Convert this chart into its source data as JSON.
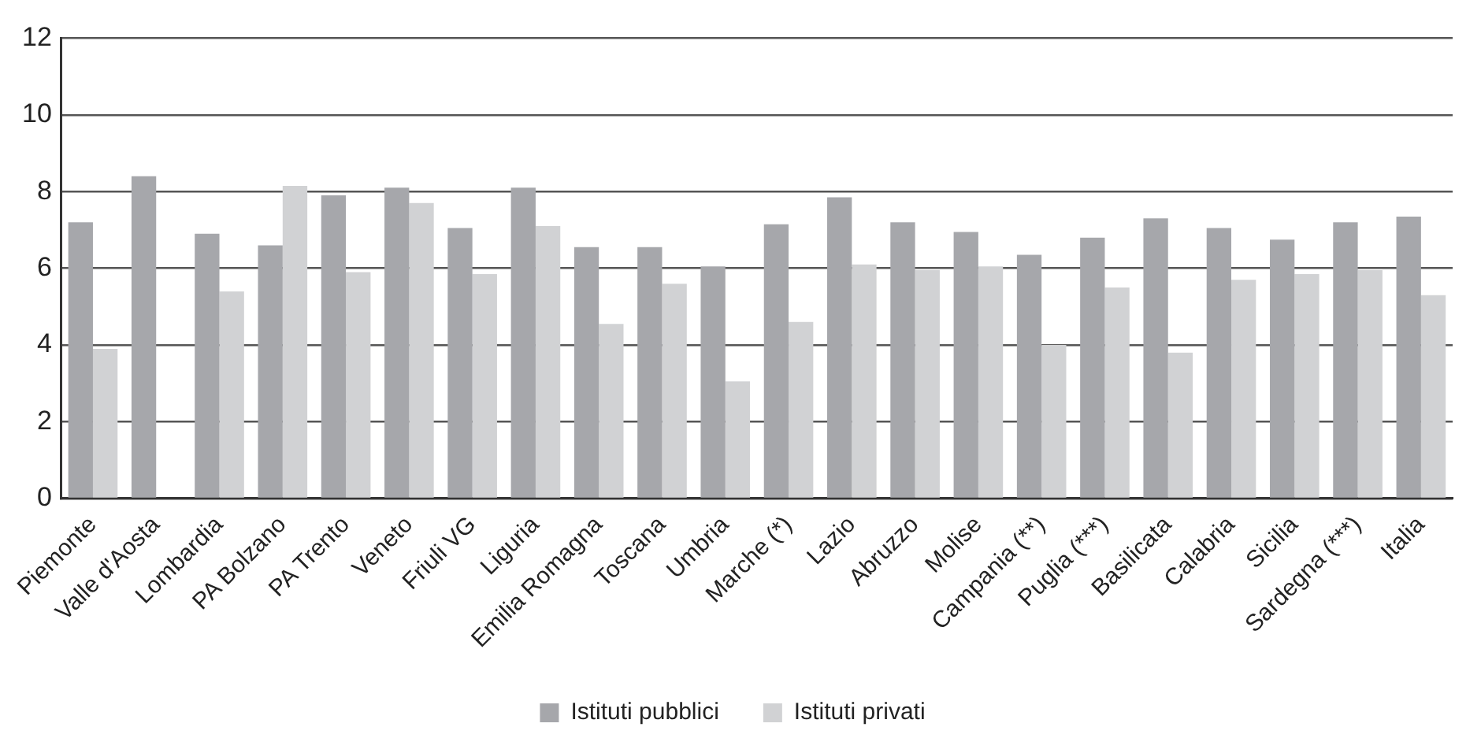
{
  "chart_data": {
    "type": "bar",
    "categories": [
      "Piemonte",
      "Valle d'Aosta",
      "Lombardia",
      "PA Bolzano",
      "PA Trento",
      "Veneto",
      "Friuli VG",
      "Liguria",
      "Emilia Romagna",
      "Toscana",
      "Umbria",
      "Marche (*)",
      "Lazio",
      "Abruzzo",
      "Molise",
      "Campania (**)",
      "Puglia (***)",
      "Basilicata",
      "Calabria",
      "Sicilia",
      "Sardegna (***)",
      "Italia"
    ],
    "series": [
      {
        "name": "Istituti pubblici",
        "color": "#a6a7ab",
        "values": [
          7.2,
          8.4,
          6.9,
          6.6,
          7.9,
          8.1,
          7.05,
          8.1,
          6.55,
          6.55,
          6.05,
          7.15,
          7.85,
          7.2,
          6.95,
          6.35,
          6.8,
          7.3,
          7.05,
          6.75,
          7.2,
          7.35
        ]
      },
      {
        "name": "Istituti privati",
        "color": "#d1d2d4",
        "values": [
          3.9,
          null,
          5.4,
          8.15,
          5.9,
          7.7,
          5.85,
          7.1,
          4.55,
          5.6,
          3.05,
          4.6,
          6.1,
          5.95,
          6.05,
          4.0,
          5.5,
          3.8,
          5.7,
          5.85,
          5.95,
          5.3
        ]
      }
    ],
    "ylim": [
      0,
      12
    ],
    "yticks": [
      0,
      2,
      4,
      6,
      8,
      10,
      12
    ],
    "grid": "y",
    "legend": "bottom"
  }
}
